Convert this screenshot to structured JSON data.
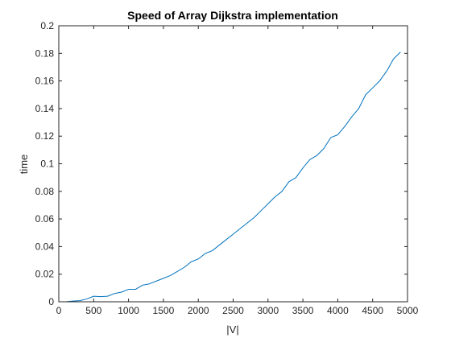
{
  "chart_data": {
    "type": "line",
    "title": "Speed of Array Dijkstra implementation",
    "xlabel": "|V|",
    "ylabel": "time",
    "xlim": [
      0,
      5000
    ],
    "ylim": [
      0,
      0.2
    ],
    "grid": false,
    "xticks": [
      0,
      500,
      1000,
      1500,
      2000,
      2500,
      3000,
      3500,
      4000,
      4500,
      5000
    ],
    "xtick_labels": [
      "0",
      "500",
      "1000",
      "1500",
      "2000",
      "2500",
      "3000",
      "3500",
      "4000",
      "4500",
      "5000"
    ],
    "yticks": [
      0,
      0.02,
      0.04,
      0.06,
      0.08,
      0.1,
      0.12,
      0.14,
      0.16,
      0.18,
      0.2
    ],
    "ytick_labels": [
      "0",
      "0.02",
      "0.04",
      "0.06",
      "0.08",
      "0.1",
      "0.12",
      "0.14",
      "0.16",
      "0.18",
      "0.2"
    ],
    "series": [
      {
        "color": "#0072bd",
        "x": [
          0,
          100,
          200,
          300,
          400,
          500,
          600,
          700,
          800,
          900,
          1000,
          1100,
          1200,
          1300,
          1400,
          1500,
          1600,
          1700,
          1800,
          1900,
          2000,
          2100,
          2200,
          2300,
          2400,
          2500,
          2600,
          2700,
          2800,
          2900,
          3000,
          3100,
          3200,
          3300,
          3400,
          3500,
          3600,
          3700,
          3800,
          3900,
          4000,
          4100,
          4200,
          4300,
          4400,
          4500,
          4600,
          4700,
          4800,
          4900
        ],
        "y": [
          0,
          0,
          0.0005,
          0.0008,
          0.002,
          0.004,
          0.0037,
          0.004,
          0.006,
          0.007,
          0.009,
          0.009,
          0.012,
          0.013,
          0.015,
          0.017,
          0.019,
          0.022,
          0.025,
          0.029,
          0.031,
          0.035,
          0.037,
          0.041,
          0.045,
          0.049,
          0.053,
          0.057,
          0.061,
          0.066,
          0.071,
          0.076,
          0.08,
          0.087,
          0.09,
          0.097,
          0.103,
          0.106,
          0.111,
          0.119,
          0.121,
          0.127,
          0.134,
          0.14,
          0.15,
          0.155,
          0.16,
          0.167,
          0.176,
          0.181
        ]
      }
    ]
  }
}
